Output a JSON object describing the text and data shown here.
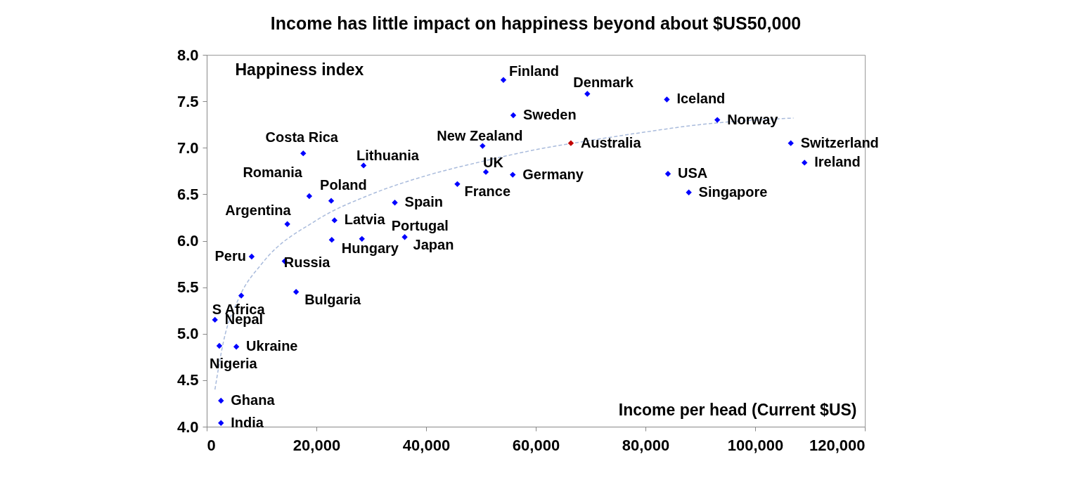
{
  "chart_data": {
    "type": "scatter",
    "title": "Income has little impact on happiness beyond about $US50,000",
    "xlabel": "Income per head (Current $US)",
    "ylabel": "Happiness index",
    "xlim": [
      0,
      120000
    ],
    "xticks": [
      0,
      {
        "value": 20000,
        "label": "20,000"
      },
      {
        "value": 40000,
        "label": "40,000"
      },
      {
        "value": 60000,
        "label": "60,000"
      },
      {
        "value": 80000,
        "label": "80,000"
      },
      {
        "value": 100000,
        "label": "100,000"
      },
      {
        "value": 120000,
        "label": "120,000"
      }
    ],
    "ylim": [
      4,
      8
    ],
    "yticks": [
      {
        "value": 4,
        "label": "4.0"
      },
      4.5,
      {
        "value": 5,
        "label": "5.0"
      },
      5.5,
      {
        "value": 6,
        "label": "6.0"
      },
      6.5,
      {
        "value": 7,
        "label": "7.0"
      },
      7.5,
      {
        "value": 8,
        "label": "8.0"
      }
    ],
    "grid": false,
    "series": [
      {
        "marker": "diamond",
        "x": [
          54100,
          69400,
          83900,
          55900,
          93100,
          50300,
          66400,
          106500,
          109000,
          50900,
          55800,
          84100,
          87900,
          45700,
          17600,
          28600,
          18700,
          22700,
          34300,
          14700,
          23300,
          22800,
          28300,
          36100,
          8200,
          14200,
          6300,
          16300,
          1500,
          2300,
          5400,
          2600,
          2600
        ],
        "values": [
          7.73,
          7.58,
          7.52,
          7.35,
          7.3,
          7.02,
          7.05,
          7.05,
          6.84,
          6.74,
          6.71,
          6.72,
          6.52,
          6.61,
          6.94,
          6.81,
          6.48,
          6.43,
          6.41,
          6.18,
          6.22,
          6.01,
          6.02,
          6.04,
          5.83,
          5.78,
          5.41,
          5.45,
          5.15,
          4.87,
          4.86,
          4.28,
          4.04
        ],
        "colors": [
          "#0000ff",
          "#0000ff",
          "#0000ff",
          "#0000ff",
          "#0000ff",
          "#0000ff",
          "#c00000",
          "#0000ff",
          "#0000ff",
          "#0000ff",
          "#0000ff",
          "#0000ff",
          "#0000ff",
          "#0000ff",
          "#0000ff",
          "#0000ff",
          "#0000ff",
          "#0000ff",
          "#0000ff",
          "#0000ff",
          "#0000ff",
          "#0000ff",
          "#0000ff",
          "#0000ff",
          "#0000ff",
          "#0000ff",
          "#0000ff",
          "#0000ff",
          "#0000ff",
          "#0000ff",
          "#0000ff",
          "#0000ff",
          "#0000ff"
        ]
      },
      {
        "type": "line",
        "color": "#a9bbdc",
        "line_style": "dashed",
        "x": [
          1500,
          3000,
          6000,
          10000,
          20000,
          30000,
          40000,
          50000,
          60000,
          70000,
          80000,
          90000,
          107000
        ],
        "values": [
          4.4,
          4.9,
          5.4,
          5.75,
          6.22,
          6.5,
          6.7,
          6.85,
          6.98,
          7.08,
          7.17,
          7.25,
          7.32
        ]
      }
    ],
    "annotations": [
      {
        "text": "Finland",
        "x": 54100,
        "y": 7.73
      },
      {
        "text": "Denmark",
        "x": 69400,
        "y": 7.58
      },
      {
        "text": "Iceland",
        "x": 83900,
        "y": 7.52
      },
      {
        "text": "Sweden",
        "x": 55900,
        "y": 7.35
      },
      {
        "text": "Norway",
        "x": 93100,
        "y": 7.3
      },
      {
        "text": "New Zealand",
        "x": 50300,
        "y": 7.02
      },
      {
        "text": "Australia",
        "x": 66400,
        "y": 7.05
      },
      {
        "text": "Switzerland",
        "x": 106500,
        "y": 7.05
      },
      {
        "text": "Ireland",
        "x": 109000,
        "y": 6.84
      },
      {
        "text": "UK",
        "x": 50900,
        "y": 6.74
      },
      {
        "text": "Germany",
        "x": 55800,
        "y": 6.71
      },
      {
        "text": "USA",
        "x": 84100,
        "y": 6.72
      },
      {
        "text": "Singapore",
        "x": 87900,
        "y": 6.52
      },
      {
        "text": "France",
        "x": 45700,
        "y": 6.61
      },
      {
        "text": "Costa Rica",
        "x": 17600,
        "y": 6.94
      },
      {
        "text": "Lithuania",
        "x": 28600,
        "y": 6.81
      },
      {
        "text": "Romania",
        "x": 18700,
        "y": 6.48
      },
      {
        "text": "Poland",
        "x": 22700,
        "y": 6.43
      },
      {
        "text": "Spain",
        "x": 34300,
        "y": 6.41
      },
      {
        "text": "Argentina",
        "x": 14700,
        "y": 6.18
      },
      {
        "text": "Latvia",
        "x": 23300,
        "y": 6.22
      },
      {
        "text": "Hungary",
        "x": 22800,
        "y": 6.01
      },
      {
        "text": "Portugal",
        "x": 28300,
        "y": 6.02
      },
      {
        "text": "Japan",
        "x": 36100,
        "y": 6.04
      },
      {
        "text": "Peru",
        "x": 8200,
        "y": 5.83
      },
      {
        "text": "Russia",
        "x": 14200,
        "y": 5.78
      },
      {
        "text": "S Africa",
        "x": 6300,
        "y": 5.41
      },
      {
        "text": "Bulgaria",
        "x": 16300,
        "y": 5.45
      },
      {
        "text": "Nepal",
        "x": 1500,
        "y": 5.15
      },
      {
        "text": "Nigeria",
        "x": 2300,
        "y": 4.87
      },
      {
        "text": "Ukraine",
        "x": 5400,
        "y": 4.86
      },
      {
        "text": "Ghana",
        "x": 2600,
        "y": 4.28
      },
      {
        "text": "India",
        "x": 2600,
        "y": 4.04
      }
    ]
  }
}
